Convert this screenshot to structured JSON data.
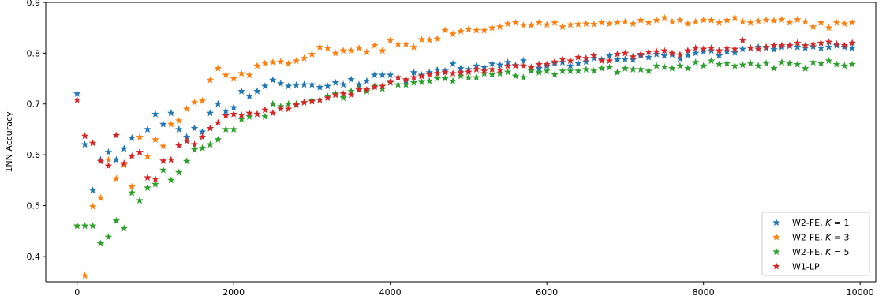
{
  "chart_data": {
    "type": "scatter",
    "title": "",
    "xlabel": "",
    "ylabel": "1NN Accuracy",
    "xlim": [
      -400,
      10200
    ],
    "ylim": [
      0.35,
      0.9
    ],
    "xticks": [
      0,
      2000,
      4000,
      6000,
      8000,
      10000
    ],
    "xtick_labels": [
      "0",
      "2000",
      "4000",
      "6000",
      "8000",
      "10000"
    ],
    "yticks": [
      0.4,
      0.5,
      0.6,
      0.7,
      0.8,
      0.9
    ],
    "ytick_labels": [
      "0.4",
      "0.5",
      "0.6",
      "0.7",
      "0.8",
      "0.9"
    ],
    "grid": false,
    "legend_position": "lower-right",
    "marker": "star",
    "x": [
      0,
      100,
      200,
      300,
      400,
      500,
      600,
      700,
      800,
      900,
      1000,
      1100,
      1200,
      1300,
      1400,
      1500,
      1600,
      1700,
      1800,
      1900,
      2000,
      2100,
      2200,
      2300,
      2400,
      2500,
      2600,
      2700,
      2800,
      2900,
      3000,
      3100,
      3200,
      3300,
      3400,
      3500,
      3600,
      3700,
      3800,
      3900,
      4000,
      4100,
      4200,
      4300,
      4400,
      4500,
      4600,
      4700,
      4800,
      4900,
      5000,
      5100,
      5200,
      5300,
      5400,
      5500,
      5600,
      5700,
      5800,
      5900,
      6000,
      6100,
      6200,
      6300,
      6400,
      6500,
      6600,
      6700,
      6800,
      6900,
      7000,
      7100,
      7200,
      7300,
      7400,
      7500,
      7600,
      7700,
      7800,
      7900,
      8000,
      8100,
      8200,
      8300,
      8400,
      8500,
      8600,
      8700,
      8800,
      8900,
      9000,
      9100,
      9200,
      9300,
      9400,
      9500,
      9600,
      9700,
      9800,
      9900
    ],
    "series": [
      {
        "name": "W2-FE, K = 1",
        "legend_prefix": "W2-FE, ",
        "legend_var": "K",
        "legend_suffix": " = 1",
        "color": "#1f77b4",
        "values": [
          0.72,
          0.62,
          0.53,
          0.59,
          0.605,
          0.59,
          0.612,
          0.633,
          0.605,
          0.65,
          0.68,
          0.66,
          0.682,
          0.65,
          0.635,
          0.652,
          0.645,
          0.682,
          0.7,
          0.686,
          0.693,
          0.725,
          0.715,
          0.725,
          0.735,
          0.747,
          0.74,
          0.735,
          0.737,
          0.738,
          0.738,
          0.733,
          0.735,
          0.742,
          0.738,
          0.748,
          0.738,
          0.745,
          0.757,
          0.757,
          0.757,
          0.752,
          0.745,
          0.762,
          0.757,
          0.762,
          0.767,
          0.765,
          0.779,
          0.77,
          0.768,
          0.775,
          0.772,
          0.779,
          0.777,
          0.782,
          0.776,
          0.785,
          0.772,
          0.77,
          0.775,
          0.78,
          0.782,
          0.775,
          0.78,
          0.783,
          0.79,
          0.787,
          0.795,
          0.787,
          0.788,
          0.787,
          0.795,
          0.792,
          0.798,
          0.795,
          0.797,
          0.789,
          0.796,
          0.8,
          0.803,
          0.805,
          0.795,
          0.803,
          0.801,
          0.808,
          0.81,
          0.812,
          0.81,
          0.807,
          0.812,
          0.814,
          0.812,
          0.81,
          0.813,
          0.81,
          0.812,
          0.815,
          0.812,
          0.81
        ]
      },
      {
        "name": "W2-FE, K = 3",
        "legend_prefix": "W2-FE, ",
        "legend_var": "K",
        "legend_suffix": " = 3",
        "color": "#ff7f0e",
        "values": [
          0.46,
          0.362,
          0.498,
          0.515,
          0.59,
          0.553,
          0.58,
          0.537,
          0.635,
          0.597,
          0.63,
          0.617,
          0.66,
          0.667,
          0.69,
          0.703,
          0.706,
          0.747,
          0.77,
          0.757,
          0.75,
          0.76,
          0.757,
          0.775,
          0.78,
          0.782,
          0.783,
          0.779,
          0.785,
          0.79,
          0.798,
          0.812,
          0.81,
          0.8,
          0.805,
          0.805,
          0.81,
          0.802,
          0.815,
          0.805,
          0.825,
          0.818,
          0.818,
          0.812,
          0.827,
          0.826,
          0.828,
          0.845,
          0.838,
          0.843,
          0.847,
          0.845,
          0.845,
          0.85,
          0.852,
          0.858,
          0.86,
          0.855,
          0.855,
          0.86,
          0.856,
          0.86,
          0.852,
          0.856,
          0.857,
          0.858,
          0.857,
          0.86,
          0.858,
          0.86,
          0.862,
          0.858,
          0.865,
          0.86,
          0.865,
          0.87,
          0.862,
          0.865,
          0.858,
          0.862,
          0.865,
          0.865,
          0.86,
          0.865,
          0.87,
          0.862,
          0.86,
          0.863,
          0.865,
          0.864,
          0.866,
          0.86,
          0.866,
          0.862,
          0.852,
          0.86,
          0.85,
          0.86,
          0.858,
          0.86
        ]
      },
      {
        "name": "W2-FE, K = 5",
        "legend_prefix": "W2-FE, ",
        "legend_var": "K",
        "legend_suffix": " = 5",
        "color": "#2ca02c",
        "values": [
          0.46,
          0.46,
          0.46,
          0.425,
          0.438,
          0.47,
          0.455,
          0.525,
          0.51,
          0.535,
          0.542,
          0.57,
          0.55,
          0.565,
          0.587,
          0.61,
          0.613,
          0.62,
          0.63,
          0.65,
          0.65,
          0.67,
          0.675,
          0.68,
          0.675,
          0.7,
          0.695,
          0.7,
          0.7,
          0.703,
          0.707,
          0.708,
          0.715,
          0.72,
          0.712,
          0.725,
          0.73,
          0.725,
          0.735,
          0.73,
          0.742,
          0.738,
          0.738,
          0.742,
          0.743,
          0.745,
          0.75,
          0.75,
          0.745,
          0.755,
          0.752,
          0.752,
          0.76,
          0.758,
          0.76,
          0.763,
          0.755,
          0.752,
          0.765,
          0.762,
          0.765,
          0.758,
          0.765,
          0.765,
          0.765,
          0.768,
          0.765,
          0.77,
          0.772,
          0.762,
          0.77,
          0.768,
          0.768,
          0.765,
          0.775,
          0.773,
          0.77,
          0.775,
          0.77,
          0.782,
          0.775,
          0.785,
          0.778,
          0.78,
          0.775,
          0.777,
          0.78,
          0.775,
          0.78,
          0.77,
          0.782,
          0.78,
          0.778,
          0.77,
          0.782,
          0.78,
          0.785,
          0.778,
          0.775,
          0.778
        ]
      },
      {
        "name": "W1-LP",
        "legend_prefix": "W1-LP",
        "legend_var": "",
        "legend_suffix": "",
        "color": "#d62728",
        "values": [
          0.708,
          0.637,
          0.623,
          0.587,
          0.578,
          0.638,
          0.583,
          0.597,
          0.605,
          0.555,
          0.552,
          0.588,
          0.59,
          0.618,
          0.627,
          0.62,
          0.635,
          0.652,
          0.663,
          0.677,
          0.68,
          0.678,
          0.682,
          0.68,
          0.688,
          0.682,
          0.69,
          0.69,
          0.698,
          0.703,
          0.705,
          0.708,
          0.712,
          0.718,
          0.72,
          0.718,
          0.728,
          0.728,
          0.733,
          0.735,
          0.743,
          0.752,
          0.748,
          0.752,
          0.755,
          0.758,
          0.76,
          0.762,
          0.76,
          0.762,
          0.763,
          0.768,
          0.765,
          0.768,
          0.767,
          0.775,
          0.775,
          0.775,
          0.772,
          0.778,
          0.778,
          0.783,
          0.788,
          0.785,
          0.792,
          0.79,
          0.795,
          0.785,
          0.785,
          0.798,
          0.8,
          0.793,
          0.798,
          0.802,
          0.803,
          0.805,
          0.8,
          0.797,
          0.805,
          0.81,
          0.808,
          0.81,
          0.805,
          0.81,
          0.808,
          0.825,
          0.81,
          0.808,
          0.812,
          0.815,
          0.815,
          0.815,
          0.82,
          0.815,
          0.818,
          0.82,
          0.822,
          0.818,
          0.815,
          0.82
        ]
      }
    ]
  }
}
